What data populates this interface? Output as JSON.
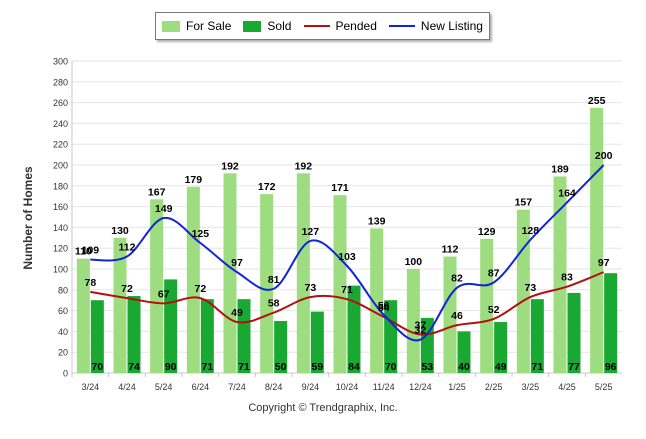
{
  "chart_data": {
    "type": "bar",
    "categories": [
      "3/24",
      "4/24",
      "5/24",
      "6/24",
      "7/24",
      "8/24",
      "9/24",
      "10/24",
      "11/24",
      "12/24",
      "1/25",
      "2/25",
      "3/25",
      "4/25",
      "5/25"
    ],
    "series": [
      {
        "name": "For Sale",
        "kind": "bar",
        "color": "#9ddc7f",
        "values": [
          110,
          130,
          167,
          179,
          192,
          172,
          192,
          171,
          139,
          100,
          112,
          129,
          157,
          189,
          255
        ]
      },
      {
        "name": "Sold",
        "kind": "bar",
        "color": "#19a832",
        "values": [
          70,
          74,
          90,
          71,
          71,
          50,
          59,
          84,
          70,
          53,
          40,
          49,
          71,
          77,
          96
        ]
      },
      {
        "name": "Pended",
        "kind": "line",
        "color": "#b31010",
        "values": [
          78,
          72,
          67,
          72,
          49,
          58,
          73,
          71,
          54,
          37,
          46,
          52,
          73,
          83,
          97
        ]
      },
      {
        "name": "New Listing",
        "kind": "line",
        "color": "#1025d8",
        "values": [
          109,
          112,
          149,
          125,
          97,
          81,
          127,
          103,
          56,
          32,
          82,
          87,
          128,
          164,
          200
        ]
      }
    ],
    "xlabel": "",
    "ylabel": "Number of Homes",
    "ylim": [
      0,
      300
    ],
    "yticks": [
      0,
      20,
      40,
      60,
      80,
      100,
      120,
      140,
      160,
      180,
      200,
      220,
      240,
      260,
      280,
      300
    ],
    "grid": true,
    "legend_position": "top-center"
  },
  "footer": {
    "copyright": "Copyright © Trendgraphix, Inc."
  }
}
